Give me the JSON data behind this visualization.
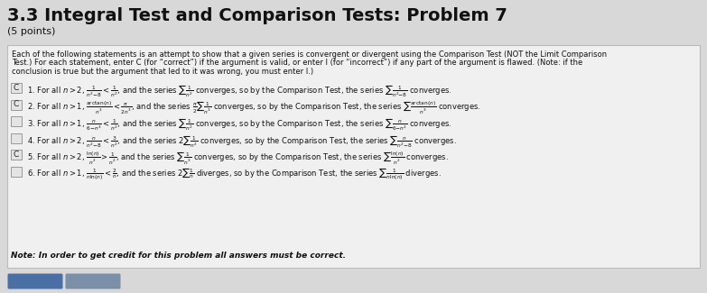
{
  "title": "3.3 Integral Test and Comparison Tests: Problem 7",
  "subtitle": "(5 points)",
  "bg_color": "#d8d8d8",
  "box_bg": "#f0f0f0",
  "box_border": "#bbbbbb",
  "title_color": "#111111",
  "text_color": "#111111",
  "intro_text_lines": [
    "Each of the following statements is an attempt to show that a given series is convergent or divergent using the Comparison Test (NOT the Limit Comparison",
    "Test.) For each statement, enter C (for “correct”) if the argument is valid, or enter I (for “incorrect”) if any part of the argument is flawed. (Note: if the",
    "conclusion is true but the argument that led to it was wrong, you must enter I.)"
  ],
  "answers": [
    "C",
    "C",
    "",
    "",
    "C",
    ""
  ],
  "rows": [
    "1. For all $n>2$, $\\frac{1}{n^2{-}8} < \\frac{1}{n^2}$, and the series $\\sum\\frac{1}{n^2}$ converges, so by the Comparison Test, the series $\\sum\\frac{1}{n^2{-}8}$ converges.",
    "2. For all $n>1$, $\\frac{\\arctan(n)}{n^3} < \\frac{\\pi}{2n^3}$, and the series $\\frac{\\pi}{2}\\sum\\frac{1}{n^3}$ converges, so by the Comparison Test, the series $\\sum\\frac{\\arctan(n)}{n^3}$ converges.",
    "3. For all $n>1$, $\\frac{n}{6{-}n^3} < \\frac{1}{n^2}$, and the series $\\sum\\frac{1}{n^2}$ converges, so by the Comparison Test, the series $\\sum\\frac{n}{6{-}n^2}$ converges.",
    "4. For all $n>2$, $\\frac{n}{n^2{-}8} < \\frac{3}{n^2}$, and the series $2\\sum\\frac{1}{n^2}$ converges, so by the Comparison Test, the series $\\sum\\frac{n}{n^2{-}8}$ converges.",
    "5. For all $n>2$, $\\frac{\\ln(n)}{n^2} > \\frac{1}{n^2}$, and the series $\\sum\\frac{1}{n^3}$ converges, so by the Comparison Test, the series $\\sum\\frac{\\ln(n)}{n^2}$ converges.",
    "6. For all $n>1$, $\\frac{1}{n\\ln(n)} < \\frac{2}{n}$, and the series $2\\sum\\frac{1}{n}$ diverges, so by the Comparison Test, the series $\\sum\\frac{1}{n\\ln(n)}$ diverges."
  ],
  "note": "Note: In order to get credit for this problem all answers must be correct.",
  "button_colors": [
    "#4a6fa5",
    "#7a8fa8"
  ],
  "figsize": [
    7.83,
    3.25
  ],
  "dpi": 100
}
